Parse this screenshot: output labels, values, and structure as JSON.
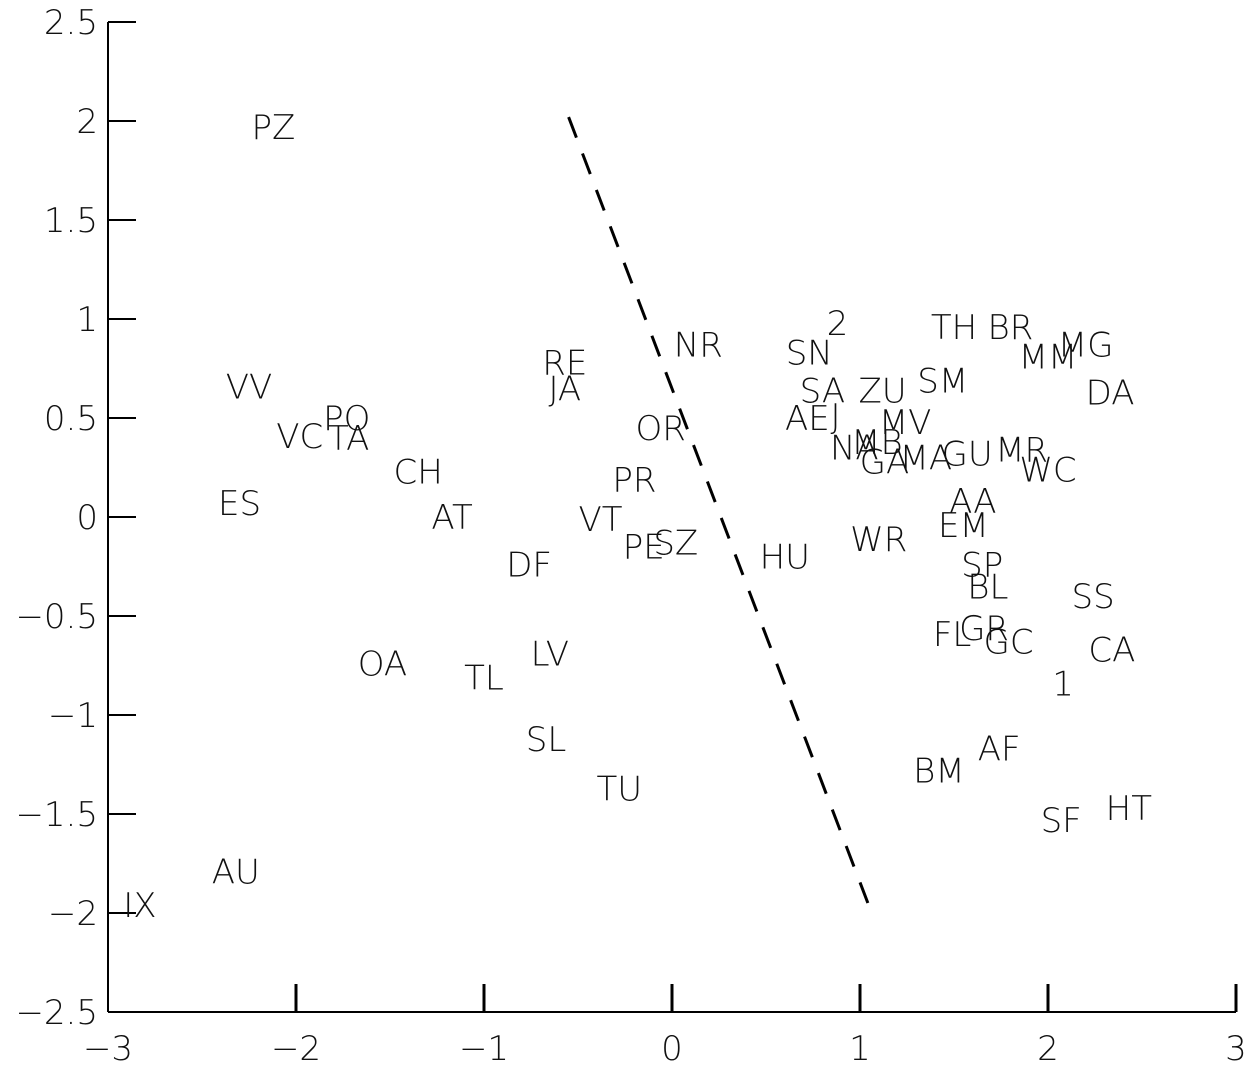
{
  "chart_data": {
    "type": "scatter",
    "title": "",
    "xlabel": "",
    "ylabel": "",
    "xlim": [
      -3,
      3
    ],
    "ylim": [
      -2.5,
      2.5
    ],
    "x_ticks": [
      "−3",
      "−2",
      "−1",
      "0",
      "1",
      "2",
      "3"
    ],
    "y_ticks": [
      "2.5",
      "2",
      "1.5",
      "1",
      "0.5",
      "0",
      "−0.5",
      "−1",
      "−1.5",
      "−2",
      "−2.5"
    ],
    "x_tick_values": [
      -3,
      -2,
      -1,
      0,
      1,
      2,
      3
    ],
    "y_tick_values": [
      2.5,
      2,
      1.5,
      1,
      0.5,
      0,
      -0.5,
      -1,
      -1.5,
      -2,
      -2.5
    ],
    "grid": false,
    "points": [
      {
        "label": "PZ",
        "x": -2.12,
        "y": 1.97
      },
      {
        "label": "VV",
        "x": -2.25,
        "y": 0.66
      },
      {
        "label": "VC",
        "x": -1.98,
        "y": 0.41
      },
      {
        "label": "PO",
        "x": -1.73,
        "y": 0.5
      },
      {
        "label": "TA",
        "x": -1.72,
        "y": 0.4
      },
      {
        "label": "ES",
        "x": -2.3,
        "y": 0.07
      },
      {
        "label": "CH",
        "x": -1.35,
        "y": 0.23
      },
      {
        "label": "AT",
        "x": -1.17,
        "y": 0.0
      },
      {
        "label": "DF",
        "x": -0.76,
        "y": -0.24
      },
      {
        "label": "OA",
        "x": -1.54,
        "y": -0.74
      },
      {
        "label": "TL",
        "x": -1.0,
        "y": -0.81
      },
      {
        "label": "LV",
        "x": -0.65,
        "y": -0.69
      },
      {
        "label": "SL",
        "x": -0.67,
        "y": -1.12
      },
      {
        "label": "TU",
        "x": -0.28,
        "y": -1.37
      },
      {
        "label": "AU",
        "x": -2.32,
        "y": -1.79
      },
      {
        "label": "IX",
        "x": -2.83,
        "y": -1.96
      },
      {
        "label": "RE",
        "x": -0.57,
        "y": 0.78
      },
      {
        "label": "JA",
        "x": -0.57,
        "y": 0.65
      },
      {
        "label": "OR",
        "x": -0.06,
        "y": 0.45
      },
      {
        "label": "PR",
        "x": -0.2,
        "y": 0.19
      },
      {
        "label": "VT",
        "x": -0.38,
        "y": -0.01
      },
      {
        "label": "PE",
        "x": -0.15,
        "y": -0.15
      },
      {
        "label": "SZ",
        "x": 0.02,
        "y": -0.13
      },
      {
        "label": "NR",
        "x": 0.14,
        "y": 0.87
      },
      {
        "label": "HU",
        "x": 0.6,
        "y": -0.2
      },
      {
        "label": "SN",
        "x": 0.73,
        "y": 0.83
      },
      {
        "label": "2",
        "x": 0.88,
        "y": 0.98
      },
      {
        "label": "SA",
        "x": 0.8,
        "y": 0.64
      },
      {
        "label": "ZU",
        "x": 1.12,
        "y": 0.64
      },
      {
        "label": "SM",
        "x": 1.44,
        "y": 0.69
      },
      {
        "label": "TH",
        "x": 1.5,
        "y": 0.96
      },
      {
        "label": "BR",
        "x": 1.8,
        "y": 0.96
      },
      {
        "label": "MM",
        "x": 2.0,
        "y": 0.81
      },
      {
        "label": "MG",
        "x": 2.2,
        "y": 0.87
      },
      {
        "label": "DA",
        "x": 2.33,
        "y": 0.63
      },
      {
        "label": "AE",
        "x": 0.72,
        "y": 0.5
      },
      {
        "label": "J",
        "x": 0.87,
        "y": 0.51
      },
      {
        "label": "MV",
        "x": 1.24,
        "y": 0.48
      },
      {
        "label": "NA",
        "x": 0.97,
        "y": 0.35
      },
      {
        "label": "MB",
        "x": 1.09,
        "y": 0.38
      },
      {
        "label": "GA",
        "x": 1.13,
        "y": 0.28
      },
      {
        "label": "MA",
        "x": 1.35,
        "y": 0.3
      },
      {
        "label": "GU",
        "x": 1.57,
        "y": 0.32
      },
      {
        "label": "MR",
        "x": 1.86,
        "y": 0.34
      },
      {
        "label": "WC",
        "x": 2.0,
        "y": 0.24
      },
      {
        "label": "AA",
        "x": 1.6,
        "y": 0.08
      },
      {
        "label": "EM",
        "x": 1.55,
        "y": -0.04
      },
      {
        "label": "WR",
        "x": 1.1,
        "y": -0.11
      },
      {
        "label": "SP",
        "x": 1.65,
        "y": -0.24
      },
      {
        "label": "BL",
        "x": 1.68,
        "y": -0.35
      },
      {
        "label": "SS",
        "x": 2.24,
        "y": -0.4
      },
      {
        "label": "FL",
        "x": 1.49,
        "y": -0.59
      },
      {
        "label": "GR",
        "x": 1.66,
        "y": -0.56
      },
      {
        "label": "GC",
        "x": 1.79,
        "y": -0.63
      },
      {
        "label": "CA",
        "x": 2.34,
        "y": -0.67
      },
      {
        "label": "1",
        "x": 2.08,
        "y": -0.84
      },
      {
        "label": "AF",
        "x": 1.74,
        "y": -1.17
      },
      {
        "label": "BM",
        "x": 1.42,
        "y": -1.28
      },
      {
        "label": "SF",
        "x": 2.07,
        "y": -1.53
      },
      {
        "label": "HT",
        "x": 2.43,
        "y": -1.47
      }
    ],
    "divider_line": {
      "x1": -0.55,
      "y1": 2.02,
      "x2": 1.05,
      "y2": -1.97,
      "style": "dashed"
    }
  }
}
